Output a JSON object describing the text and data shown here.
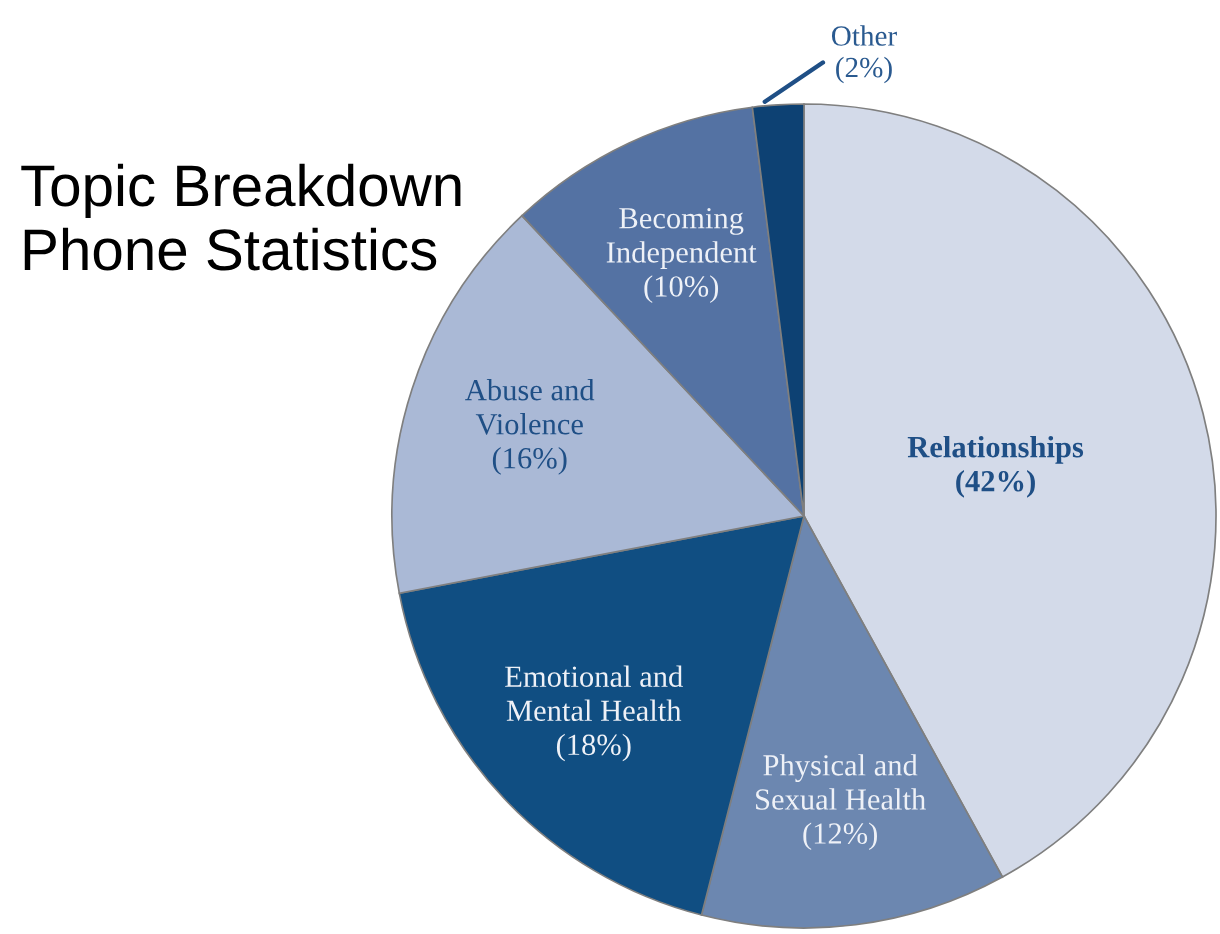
{
  "chart_data": {
    "type": "pie",
    "title": "Topic Breakdown",
    "subtitle": "Phone Statistics",
    "categories": [
      "Relationships",
      "Physical and\nSexual Health",
      "Emotional and\nMental Health",
      "Abuse and\nViolence",
      "Becoming\nIndependent",
      "Other"
    ],
    "values": [
      42,
      12,
      18,
      16,
      10,
      2
    ],
    "colors": [
      "#d3dae9",
      "#6c87b0",
      "#104e82",
      "#aab9d6",
      "#5472a3",
      "#0d4173"
    ],
    "value_labels": [
      "(42%)",
      "(12%)",
      "(18%)",
      "(16%)",
      "(10%)",
      "(2%)"
    ]
  }
}
